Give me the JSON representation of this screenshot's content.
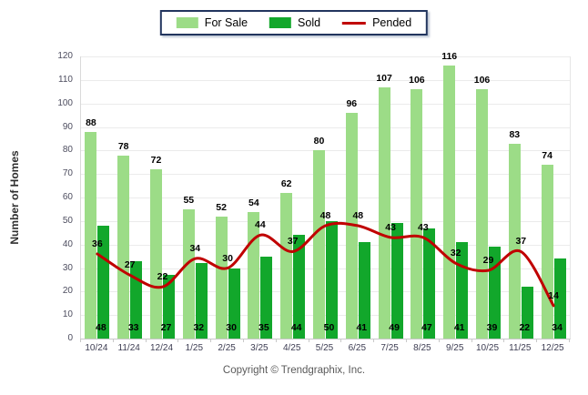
{
  "chart_data": {
    "type": "bar",
    "categories": [
      "10/24",
      "11/24",
      "12/24",
      "1/25",
      "2/25",
      "3/25",
      "4/25",
      "5/25",
      "6/25",
      "7/25",
      "8/25",
      "9/25",
      "10/25",
      "11/25",
      "12/25"
    ],
    "series": [
      {
        "name": "For Sale",
        "type": "bar",
        "color": "#9CDC87",
        "values": [
          88,
          78,
          72,
          55,
          52,
          54,
          62,
          80,
          96,
          107,
          106,
          116,
          106,
          83,
          74
        ]
      },
      {
        "name": "Sold",
        "type": "bar",
        "color": "#12A72B",
        "values": [
          48,
          33,
          27,
          32,
          30,
          35,
          44,
          50,
          41,
          49,
          47,
          41,
          39,
          22,
          34
        ]
      },
      {
        "name": "Pended",
        "type": "line",
        "color": "#C00000",
        "values": [
          36,
          27,
          22,
          34,
          30,
          44,
          37,
          48,
          48,
          43,
          43,
          32,
          29,
          37,
          14
        ]
      }
    ],
    "title": "",
    "xlabel": "",
    "ylabel": "Number of Homes",
    "ylim": [
      0,
      120
    ],
    "y_ticks": [
      0,
      10,
      20,
      30,
      40,
      50,
      60,
      70,
      80,
      90,
      100,
      110,
      120
    ],
    "grid": "horizontal",
    "legend_position": "top-center",
    "bar_value_labels": true
  },
  "footer": {
    "copyright": "Copyright © Trendgraphix, Inc."
  }
}
